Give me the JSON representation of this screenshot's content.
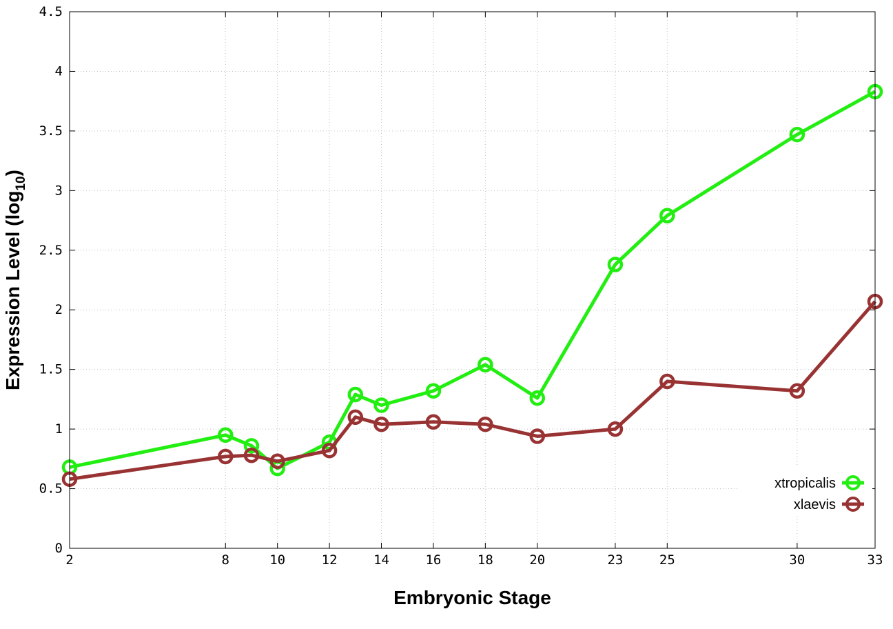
{
  "chart_data": {
    "type": "line",
    "title": "",
    "xlabel": "Embryonic Stage",
    "ylabel": {
      "main": "Expression Level (log",
      "subscript": "10",
      "suffix": ")"
    },
    "x_ticks": [
      2,
      8,
      10,
      12,
      14,
      16,
      18,
      20,
      23,
      25,
      30,
      33
    ],
    "x_tick_labels": [
      "2",
      "8",
      "10",
      "12",
      "14",
      "16",
      "18",
      "20",
      "23",
      "25",
      "30",
      "33"
    ],
    "y_ticks": [
      0,
      0.5,
      1,
      1.5,
      2,
      2.5,
      3,
      3.5,
      4,
      4.5
    ],
    "y_tick_labels": [
      "0",
      "0.5",
      "1",
      "1.5",
      "2",
      "2.5",
      "3",
      "3.5",
      "4",
      "4.5"
    ],
    "xlim": [
      2,
      33
    ],
    "ylim": [
      0,
      4.5
    ],
    "grid": true,
    "legend_position": "bottom-right",
    "series": [
      {
        "name": "xtropicalis",
        "color": "#22ee11",
        "marker": "open-circle",
        "x": [
          2,
          8,
          9,
          10,
          12,
          13,
          14,
          16,
          18,
          20,
          23,
          25,
          30,
          33
        ],
        "y": [
          0.68,
          0.95,
          0.86,
          0.67,
          0.89,
          1.29,
          1.2,
          1.32,
          1.54,
          1.26,
          2.38,
          2.79,
          3.47,
          3.83
        ]
      },
      {
        "name": "xlaevis",
        "color": "#993333",
        "marker": "open-circle",
        "x": [
          2,
          8,
          9,
          10,
          12,
          13,
          14,
          16,
          18,
          20,
          23,
          25,
          30,
          33
        ],
        "y": [
          0.58,
          0.77,
          0.78,
          0.73,
          0.82,
          1.1,
          1.04,
          1.06,
          1.04,
          0.94,
          1.0,
          1.4,
          1.32,
          2.07
        ]
      }
    ]
  }
}
